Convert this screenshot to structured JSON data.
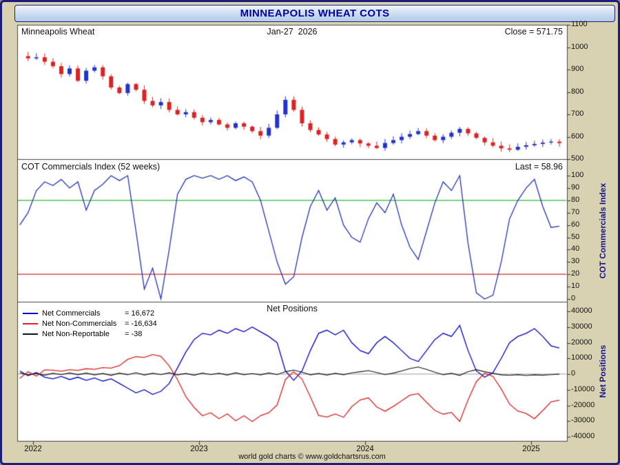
{
  "title": "MINNEAPOLIS WHEAT COTS",
  "footer": "world gold charts © www.goldchartsrus.com",
  "colors": {
    "background": "#d9d2b2",
    "frame": "#1c1c7a",
    "title_text": "#0000a0",
    "up_candle": "#2233cc",
    "down_candle": "#dd2222",
    "index_line": "#2233bb",
    "overbought_line": "#2db82d",
    "oversold_line": "#cc2b2b",
    "commercials": "#0000cc",
    "noncommercials": "#dd2222",
    "nonreportable": "#111111"
  },
  "price_panel": {
    "label": "Minneapolis Wheat",
    "date_label": "Jan-27  2026",
    "close_label": "Close = 571.75",
    "y_ticks": [
      1100,
      1000,
      900,
      800,
      700,
      600,
      500
    ]
  },
  "index_panel": {
    "label": "COT Commercials Index (52 weeks)",
    "last_label": "Last = 58.96",
    "axis_title": "COT Commercials Index",
    "overbought": 80,
    "oversold": 20,
    "y_ticks": [
      100,
      90,
      80,
      70,
      60,
      50,
      40,
      30,
      20,
      10,
      0
    ]
  },
  "positions_panel": {
    "label": "Net Positions",
    "axis_title": "Net Positions",
    "y_ticks": [
      40000,
      30000,
      20000,
      10000,
      0,
      -10000,
      -20000,
      -30000,
      -40000
    ],
    "tick_labels": [
      "40000",
      "30000",
      "20000",
      "10000",
      "0",
      "-10000",
      "-20000",
      "-30000",
      "-40000"
    ],
    "legend": [
      {
        "name": "Net Commercials",
        "value_label": "=  16,672",
        "color": "#0000cc"
      },
      {
        "name": "Net Non-Commercials",
        "value_label": "=  -16,634",
        "color": "#dd2222"
      },
      {
        "name": "Net Non-Reportable",
        "value_label": "=  -38",
        "color": "#111111"
      }
    ]
  },
  "x_axis": {
    "year_ticks": [
      2022,
      2023,
      2024,
      2025
    ],
    "labels": [
      "2022",
      "2023",
      "2024",
      "2025"
    ]
  },
  "chart_data": {
    "type": "multi-panel",
    "x_years": [
      2021.92,
      2021.97,
      2022.02,
      2022.07,
      2022.12,
      2022.17,
      2022.22,
      2022.27,
      2022.32,
      2022.37,
      2022.42,
      2022.47,
      2022.52,
      2022.57,
      2022.62,
      2022.67,
      2022.72,
      2022.77,
      2022.82,
      2022.87,
      2022.92,
      2022.97,
      2023.02,
      2023.07,
      2023.12,
      2023.17,
      2023.22,
      2023.27,
      2023.32,
      2023.37,
      2023.42,
      2023.47,
      2023.52,
      2023.57,
      2023.62,
      2023.67,
      2023.72,
      2023.77,
      2023.82,
      2023.87,
      2023.92,
      2023.97,
      2024.02,
      2024.07,
      2024.12,
      2024.17,
      2024.22,
      2024.27,
      2024.32,
      2024.37,
      2024.42,
      2024.47,
      2024.52,
      2024.57,
      2024.62,
      2024.67,
      2024.72,
      2024.77,
      2024.82,
      2024.87,
      2024.92,
      2024.97,
      2025.02,
      2025.07,
      2025.12,
      2025.17
    ],
    "panels": [
      {
        "name": "price",
        "type": "candlestick",
        "title": "Minneapolis Wheat",
        "ylim": [
          500,
          1100
        ],
        "close": [
          960,
          950,
          955,
          935,
          915,
          880,
          905,
          850,
          895,
          910,
          870,
          820,
          795,
          835,
          810,
          760,
          740,
          755,
          720,
          700,
          710,
          685,
          665,
          675,
          655,
          640,
          660,
          645,
          625,
          605,
          640,
          700,
          765,
          720,
          660,
          630,
          610,
          590,
          565,
          575,
          585,
          570,
          560,
          550,
          572,
          585,
          600,
          612,
          625,
          605,
          585,
          600,
          618,
          635,
          615,
          595,
          575,
          560,
          548,
          542,
          555,
          562,
          568,
          574,
          578,
          571.75
        ],
        "last_close": 571.75
      },
      {
        "name": "cot_commercials_index",
        "type": "line",
        "title": "COT Commercials Index (52 weeks)",
        "ylim": [
          0,
          100
        ],
        "overbought": 80,
        "oversold": 20,
        "last_value": 58.96,
        "values": [
          60,
          70,
          88,
          95,
          92,
          97,
          90,
          95,
          72,
          88,
          93,
          100,
          96,
          100,
          55,
          8,
          25,
          0,
          40,
          85,
          97,
          100,
          98,
          100,
          97,
          100,
          96,
          99,
          95,
          80,
          55,
          30,
          12,
          18,
          50,
          75,
          88,
          72,
          82,
          60,
          50,
          46,
          65,
          78,
          70,
          85,
          60,
          42,
          32,
          55,
          78,
          95,
          88,
          100,
          45,
          5,
          0,
          3,
          30,
          65,
          80,
          90,
          97,
          75,
          58,
          58.96
        ]
      },
      {
        "name": "net_positions",
        "type": "line",
        "title": "Net Positions",
        "ylim": [
          -40000,
          40000
        ],
        "series": [
          {
            "name": "Net Commercials",
            "last_value": 16672,
            "color": "#0000cc",
            "values": [
              2000,
              -1000,
              1000,
              -2000,
              -3000,
              -1500,
              -3500,
              -2000,
              -4000,
              -2500,
              -4500,
              -3000,
              -6000,
              -9000,
              -12000,
              -10000,
              -13000,
              -11000,
              -6000,
              4000,
              14000,
              22000,
              26000,
              25000,
              28000,
              26000,
              29000,
              27000,
              30000,
              27000,
              24000,
              20000,
              2000,
              -4000,
              2000,
              15000,
              26000,
              28000,
              25000,
              28000,
              20000,
              15000,
              13000,
              20000,
              24000,
              20000,
              15000,
              10000,
              8000,
              15000,
              22000,
              26000,
              24000,
              31000,
              15000,
              2000,
              -2000,
              1000,
              10000,
              20000,
              24000,
              26000,
              29000,
              24000,
              18000,
              16672
            ]
          },
          {
            "name": "Net Non-Commercials",
            "last_value": -16634,
            "color": "#dd2222",
            "values": [
              -2800,
              1500,
              -1300,
              2700,
              2500,
              1800,
              2800,
              2400,
              3400,
              3000,
              4100,
              3800,
              5400,
              9400,
              11100,
              10600,
              12500,
              11300,
              5200,
              -3500,
              -14400,
              -21300,
              -26600,
              -24700,
              -28500,
              -25400,
              -29800,
              -26600,
              -30300,
              -26500,
              -24700,
              -19700,
              -3500,
              1500,
              -3200,
              -14500,
              -26400,
              -27400,
              -25500,
              -27600,
              -20800,
              -16500,
              -15200,
              -21000,
              -23700,
              -20600,
              -17000,
              -13500,
              -12500,
              -18000,
              -23200,
              -25600,
              -24500,
              -30200,
              -16500,
              -4800,
              500,
              -1500,
              -9500,
              -19200,
              -23600,
              -25100,
              -28500,
              -23300,
              -17700,
              -16634
            ]
          },
          {
            "name": "Net Non-Reportable",
            "last_value": -38,
            "color": "#111111",
            "values": [
              800,
              -500,
              300,
              -700,
              500,
              -300,
              700,
              -400,
              600,
              -500,
              400,
              -800,
              600,
              -400,
              900,
              -600,
              500,
              -300,
              800,
              -500,
              400,
              -700,
              600,
              -300,
              500,
              -600,
              800,
              -400,
              300,
              -500,
              700,
              -300,
              1500,
              2500,
              1200,
              -500,
              400,
              -600,
              500,
              -400,
              800,
              1500,
              2200,
              1000,
              -300,
              600,
              2000,
              3500,
              4500,
              3000,
              1200,
              -400,
              500,
              -800,
              1500,
              2800,
              1500,
              500,
              -500,
              -800,
              -400,
              -900,
              -500,
              -700,
              -300,
              -38
            ]
          }
        ]
      }
    ]
  }
}
